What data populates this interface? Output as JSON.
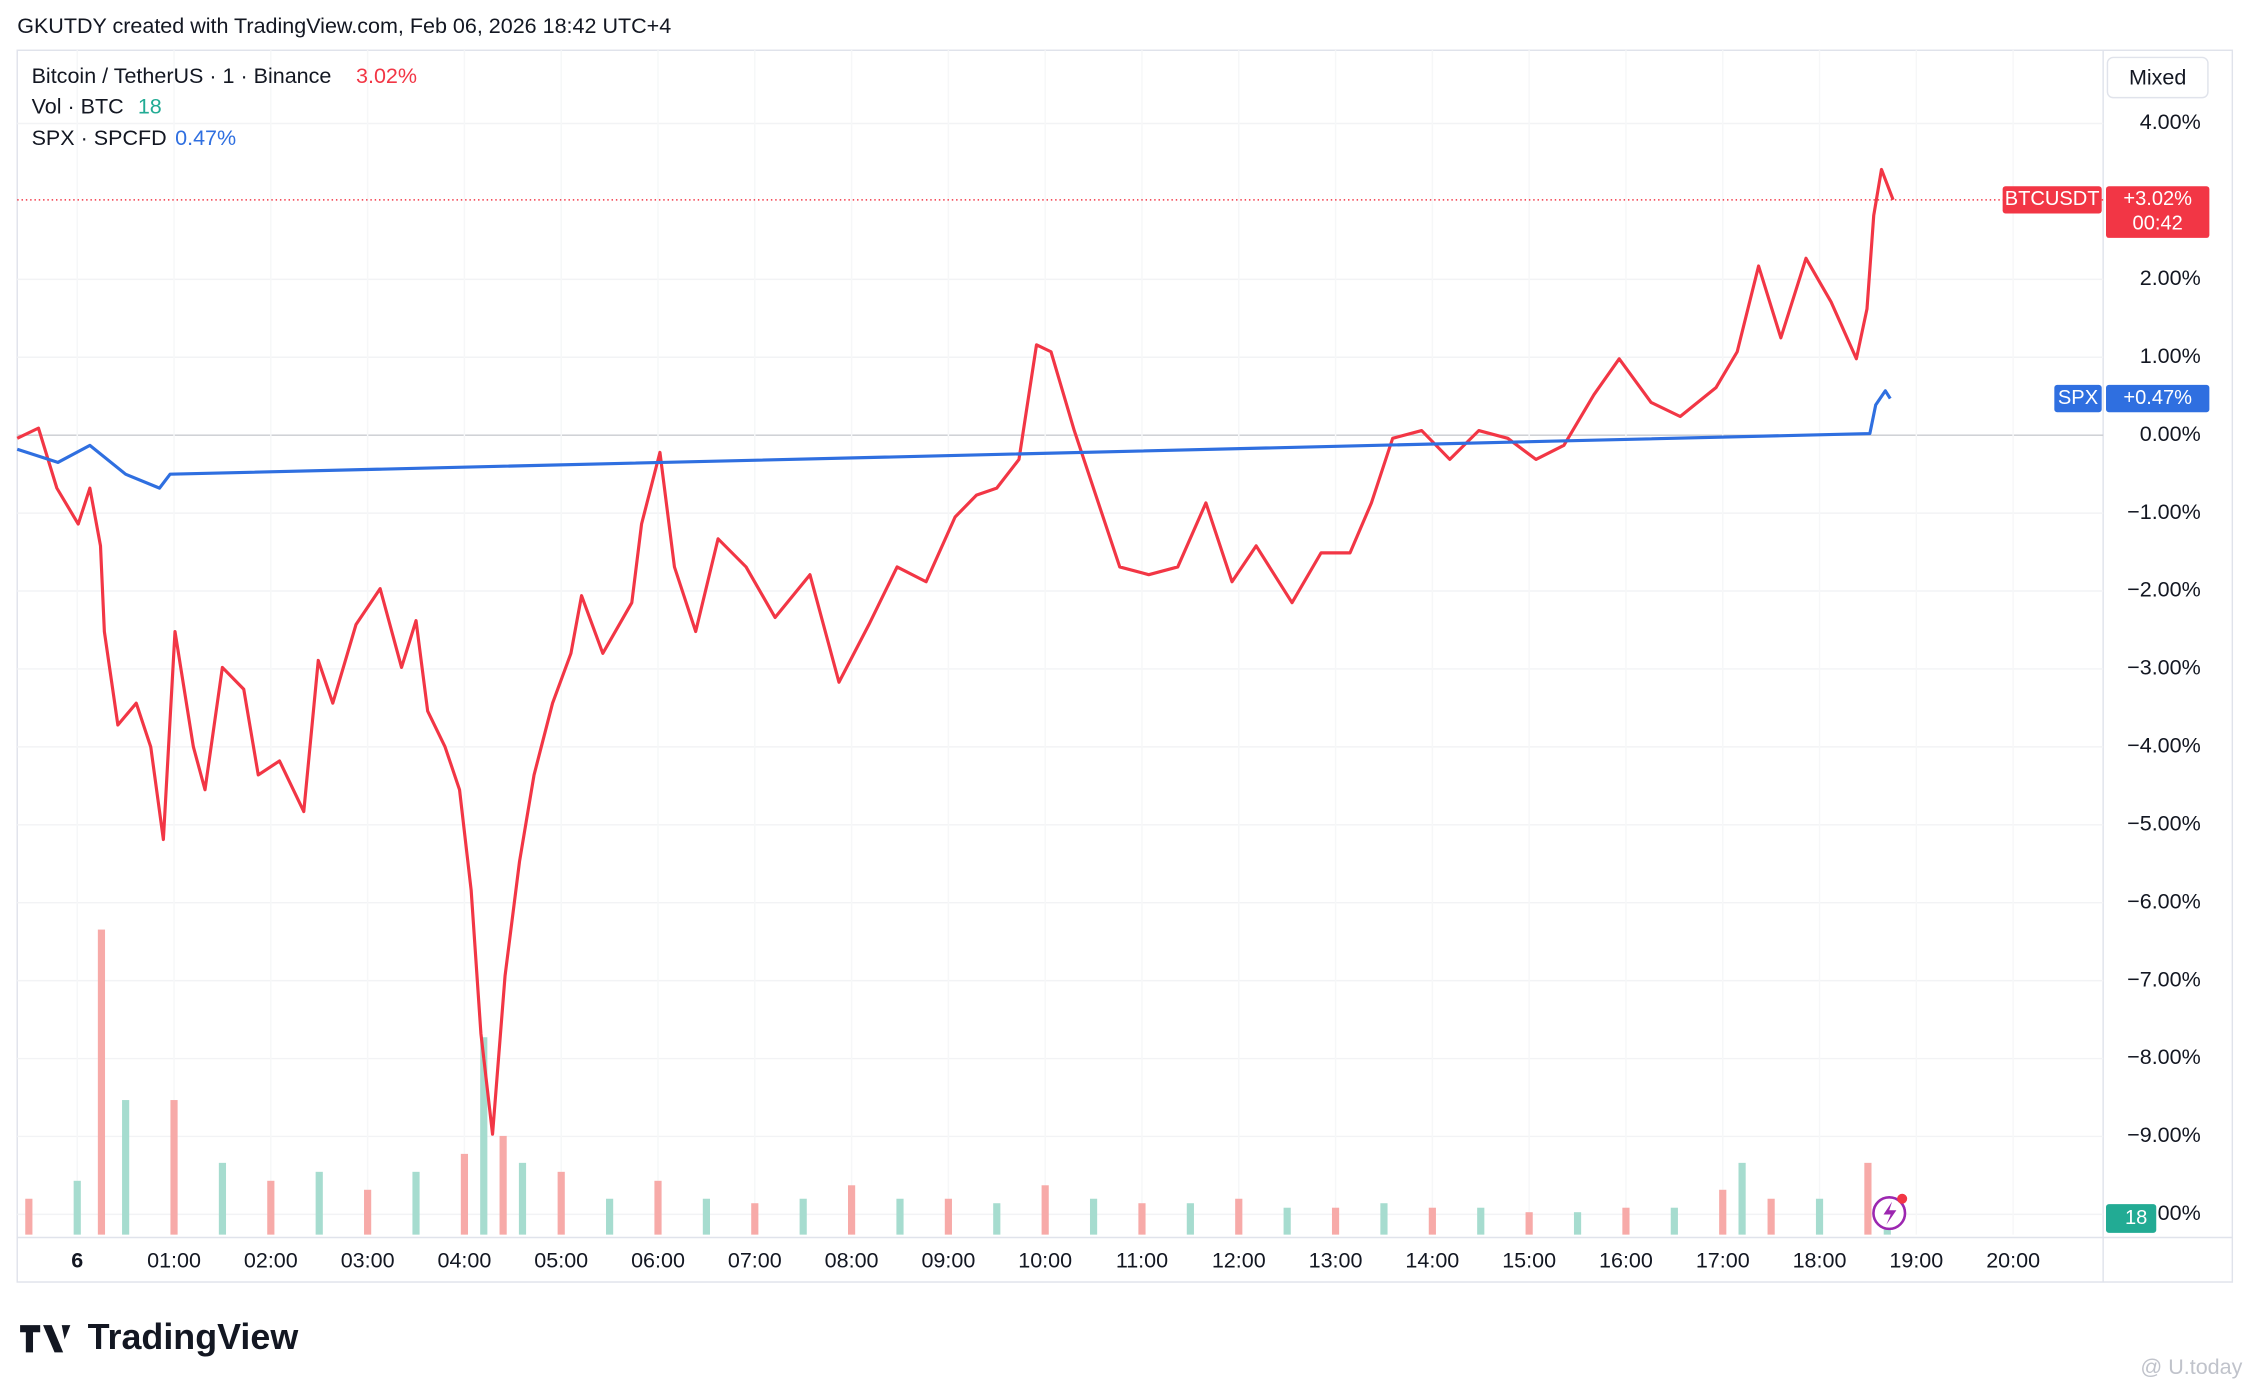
{
  "header": {
    "title": "GKUTDY created with TradingView.com, Feb 06, 2026 18:42 UTC+4"
  },
  "toolbar": {
    "scale_mode": "Mixed"
  },
  "chart_data": {
    "type": "line",
    "xlim": [
      -0.62,
      20.93
    ],
    "xticks": [
      {
        "value": 0,
        "label": "6"
      },
      {
        "value": 1,
        "label": "01:00"
      },
      {
        "value": 2,
        "label": "02:00"
      },
      {
        "value": 3,
        "label": "03:00"
      },
      {
        "value": 4,
        "label": "04:00"
      },
      {
        "value": 5,
        "label": "05:00"
      },
      {
        "value": 6,
        "label": "06:00"
      },
      {
        "value": 7,
        "label": "07:00"
      },
      {
        "value": 8,
        "label": "08:00"
      },
      {
        "value": 9,
        "label": "09:00"
      },
      {
        "value": 10,
        "label": "10:00"
      },
      {
        "value": 11,
        "label": "11:00"
      },
      {
        "value": 12,
        "label": "12:00"
      },
      {
        "value": 13,
        "label": "13:00"
      },
      {
        "value": 14,
        "label": "14:00"
      },
      {
        "value": 15,
        "label": "15:00"
      },
      {
        "value": 16,
        "label": "16:00"
      },
      {
        "value": 17,
        "label": "17:00"
      },
      {
        "value": 18,
        "label": "18:00"
      },
      {
        "value": 19,
        "label": "19:00"
      },
      {
        "value": 20,
        "label": "20:00"
      }
    ],
    "ylim": [
      -10.26,
      4.94
    ],
    "yticks": [
      {
        "value": 4,
        "label": "4.00%"
      },
      {
        "value": 2,
        "label": "2.00%"
      },
      {
        "value": 1,
        "label": "1.00%"
      },
      {
        "value": 0,
        "label": "0.00%"
      },
      {
        "value": -1,
        "label": "−1.00%"
      },
      {
        "value": -2,
        "label": "−2.00%"
      },
      {
        "value": -3,
        "label": "−3.00%"
      },
      {
        "value": -4,
        "label": "−4.00%"
      },
      {
        "value": -5,
        "label": "−5.00%"
      },
      {
        "value": -6,
        "label": "−6.00%"
      },
      {
        "value": -7,
        "label": "−7.00%"
      },
      {
        "value": -8,
        "label": "−8.00%"
      },
      {
        "value": -9,
        "label": "−9.00%"
      },
      {
        "value": -10,
        "label": "−10.00%"
      }
    ],
    "grid": true,
    "series": [
      {
        "name": "Bitcoin / TetherUS · 1 · Binance",
        "color": "#f23645",
        "x": [
          -0.62,
          -0.4,
          -0.21,
          0.01,
          0.13,
          0.24,
          0.28,
          0.42,
          0.61,
          0.76,
          0.89,
          1.01,
          1.2,
          1.32,
          1.5,
          1.72,
          1.87,
          2.09,
          2.34,
          2.49,
          2.64,
          2.88,
          3.13,
          3.35,
          3.5,
          3.62,
          3.8,
          3.95,
          4.07,
          4.17,
          4.29,
          4.42,
          4.57,
          4.72,
          4.91,
          5.1,
          5.21,
          5.43,
          5.73,
          5.83,
          6.02,
          6.17,
          6.39,
          6.62,
          6.91,
          7.21,
          7.57,
          7.87,
          8.18,
          8.47,
          8.77,
          9.07,
          9.29,
          9.5,
          9.73,
          9.91,
          10.06,
          10.3,
          10.55,
          10.77,
          11.07,
          11.37,
          11.66,
          11.93,
          12.18,
          12.55,
          12.85,
          13.15,
          13.37,
          13.59,
          13.89,
          14.18,
          14.48,
          14.78,
          15.07,
          15.36,
          15.67,
          15.93,
          16.26,
          16.56,
          16.93,
          17.15,
          17.37,
          17.6,
          17.86,
          18.12,
          18.38,
          18.49,
          18.56,
          18.64,
          18.76
        ],
        "values": [
          -0.04,
          0.09,
          -0.68,
          -1.14,
          -0.68,
          -1.42,
          -2.52,
          -3.72,
          -3.44,
          -4.0,
          -5.19,
          -2.52,
          -4.0,
          -4.55,
          -2.98,
          -3.26,
          -4.36,
          -4.18,
          -4.83,
          -2.89,
          -3.44,
          -2.43,
          -1.97,
          -2.98,
          -2.38,
          -3.54,
          -4.0,
          -4.55,
          -5.84,
          -7.68,
          -8.97,
          -6.94,
          -5.47,
          -4.36,
          -3.44,
          -2.8,
          -2.06,
          -2.8,
          -2.15,
          -1.14,
          -0.22,
          -1.69,
          -2.52,
          -1.33,
          -1.69,
          -2.34,
          -1.79,
          -3.17,
          -2.43,
          -1.69,
          -1.88,
          -1.05,
          -0.77,
          -0.68,
          -0.31,
          1.16,
          1.07,
          0.06,
          -0.87,
          -1.69,
          -1.79,
          -1.69,
          -0.87,
          -1.88,
          -1.42,
          -2.15,
          -1.51,
          -1.51,
          -0.87,
          -0.04,
          0.06,
          -0.31,
          0.06,
          -0.04,
          -0.31,
          -0.13,
          0.52,
          0.98,
          0.42,
          0.24,
          0.61,
          1.07,
          2.17,
          1.25,
          2.27,
          1.71,
          0.98,
          1.62,
          2.82,
          3.41,
          3.02
        ],
        "last_value": 3.02,
        "last_label": "3.02%",
        "badge_name": "BTCUSDT",
        "badge_label": "+3.02%",
        "countdown": "00:42"
      },
      {
        "name": "SPX · SPCFD",
        "color": "#2f6fe0",
        "x": [
          -0.62,
          -0.2,
          0.13,
          0.5,
          0.85,
          0.96,
          18.52,
          18.58,
          18.68,
          18.73
        ],
        "values": [
          -0.18,
          -0.35,
          -0.13,
          -0.5,
          -0.68,
          -0.5,
          0.02,
          0.39,
          0.57,
          0.47
        ],
        "last_value": 0.47,
        "last_label": "0.47%",
        "badge_name": "SPX",
        "badge_label": "+0.47%"
      }
    ],
    "volume": {
      "name": "Vol · BTC",
      "last_value": 18,
      "vlim": [
        0,
        1320
      ],
      "colors": [
        "#f7aaa8",
        "#a6dccf"
      ],
      "badge_color": "#22ab94",
      "x": [
        -0.5,
        0,
        0.25,
        0.5,
        1,
        1.5,
        2,
        2.5,
        3,
        3.5,
        4,
        4.2,
        4.4,
        4.6,
        5,
        5.5,
        6,
        6.5,
        7,
        7.5,
        8,
        8.5,
        9,
        9.5,
        10,
        10.5,
        11,
        11.5,
        12,
        12.5,
        13,
        13.5,
        14,
        14.5,
        15,
        15.5,
        16,
        16.5,
        17,
        17.2,
        17.5,
        18,
        18.5,
        18.7
      ],
      "values": [
        40,
        60,
        340,
        150,
        150,
        80,
        60,
        70,
        50,
        70,
        90,
        220,
        110,
        80,
        70,
        40,
        60,
        40,
        35,
        40,
        55,
        40,
        40,
        35,
        55,
        40,
        35,
        35,
        40,
        30,
        30,
        35,
        30,
        30,
        25,
        25,
        30,
        30,
        50,
        80,
        40,
        40,
        80,
        18
      ]
    }
  },
  "branding": {
    "logo": "TradingView",
    "watermark": "@ U.today"
  }
}
